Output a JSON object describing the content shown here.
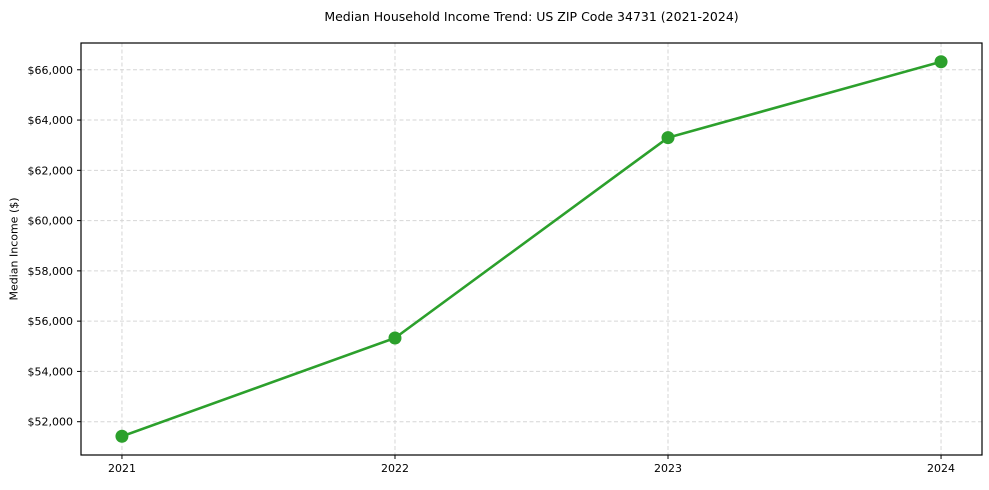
{
  "chart_data": {
    "type": "line",
    "title": "Median Household Income Trend: US ZIP Code 34731 (2021-2024)",
    "ylabel": "Median Income ($)",
    "x": [
      2021,
      2022,
      2023,
      2024
    ],
    "series": [
      {
        "name": "Median Household Income",
        "values": [
          51420,
          55330,
          63300,
          66320
        ]
      }
    ],
    "xticks": [
      {
        "value": 2021,
        "label": "2021"
      },
      {
        "value": 2022,
        "label": "2022"
      },
      {
        "value": 2023,
        "label": "2023"
      },
      {
        "value": 2024,
        "label": "2024"
      }
    ],
    "yticks": [
      {
        "value": 52000,
        "label": "$52,000"
      },
      {
        "value": 54000,
        "label": "$54,000"
      },
      {
        "value": 56000,
        "label": "$56,000"
      },
      {
        "value": 58000,
        "label": "$58,000"
      },
      {
        "value": 60000,
        "label": "$60,000"
      },
      {
        "value": 62000,
        "label": "$62,000"
      },
      {
        "value": 64000,
        "label": "$64,000"
      },
      {
        "value": 66000,
        "label": "$66,000"
      }
    ],
    "xlim": [
      2020.85,
      2024.15
    ],
    "ylim": [
      50675,
      67065
    ],
    "grid": true,
    "grid_style": "dashed",
    "legend": "none",
    "line_color": "#2ca02c",
    "marker": "circle",
    "marker_color": "#2ca02c",
    "grid_color": "#d6d6d6",
    "spine_color": "#000000",
    "background": "#ffffff"
  }
}
